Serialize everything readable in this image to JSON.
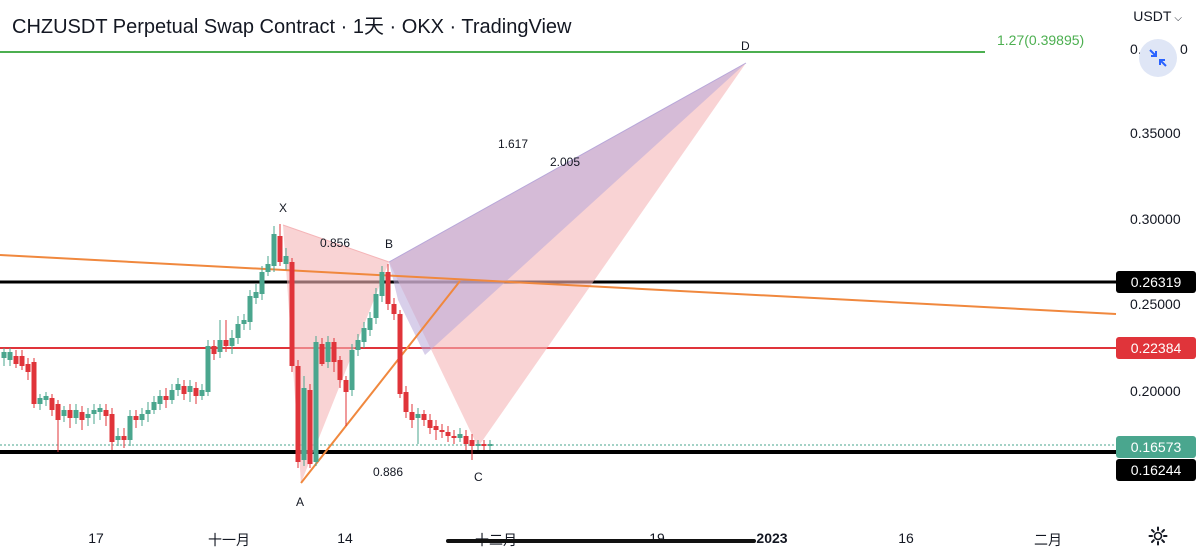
{
  "title": "CHZUSDT Perpetual Swap Contract · 1天 · OKX · TradingView",
  "currency": "USDT",
  "toolbar": {
    "fit_icon": "collapse-arrows-icon",
    "settings_icon": "gear-icon"
  },
  "price_axis": {
    "ticks": [
      "0.35000",
      "0.30000",
      "0.25000",
      "0.20000"
    ],
    "top_partial": "0.",
    "top_partial2": "0"
  },
  "price_labels": [
    {
      "name": "black-top",
      "value": "0.26319",
      "color": "#000000"
    },
    {
      "name": "red",
      "value": "0.22384",
      "color": "#e0343a"
    },
    {
      "name": "current",
      "value": "0.16573",
      "color": "#4aa68e"
    },
    {
      "name": "black-bottom",
      "value": "0.16244",
      "color": "#000000"
    }
  ],
  "time_axis": [
    {
      "label": "17",
      "bold": false
    },
    {
      "label": "十一月",
      "bold": false
    },
    {
      "label": "14",
      "bold": false
    },
    {
      "label": "十二月",
      "bold": false
    },
    {
      "label": "19",
      "bold": false
    },
    {
      "label": "2023",
      "bold": true
    },
    {
      "label": "16",
      "bold": false
    },
    {
      "label": "二月",
      "bold": false
    }
  ],
  "fib_label": "1.27(0.39895)",
  "pattern": {
    "points": [
      "X",
      "A",
      "B",
      "C",
      "D"
    ],
    "ratios": [
      "0.856",
      "0.886",
      "1.617",
      "2.005"
    ]
  },
  "colors": {
    "up": "#4aa68e",
    "down": "#e0343a",
    "green_line": "#4caf50",
    "orange": "#f0883e",
    "pink_fill": "#f5b5b8",
    "purple_fill": "#b8a7d9"
  }
}
